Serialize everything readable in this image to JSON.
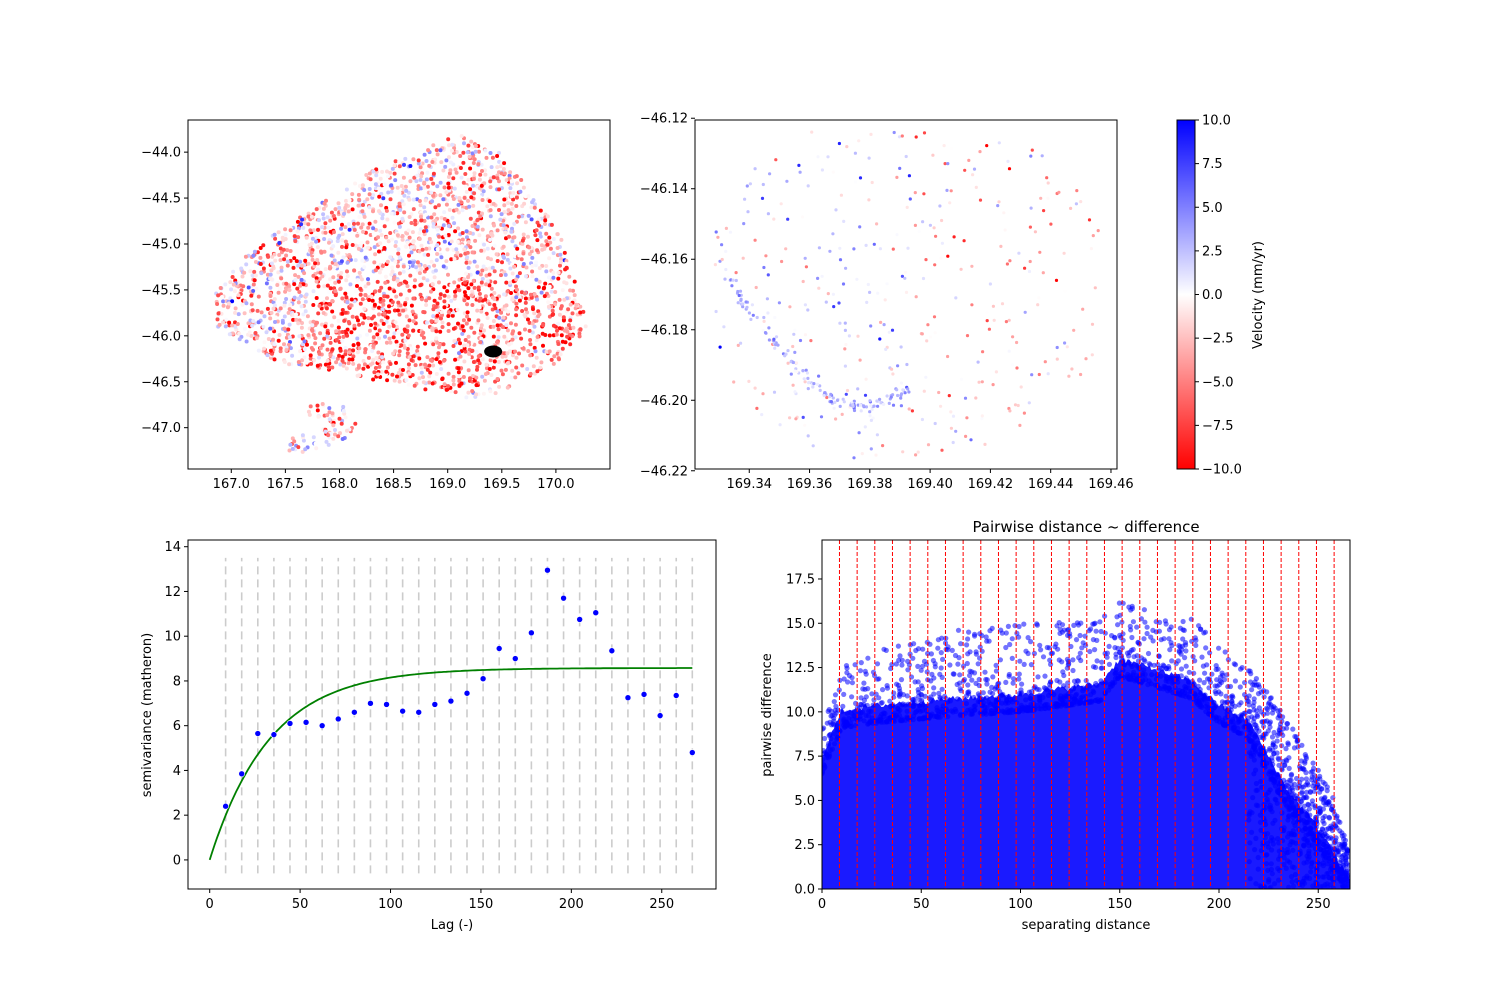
{
  "colors": {
    "positive": "#0000ff",
    "neutral": "#ffffff",
    "negative": "#ff0000",
    "highlight_cluster": "#000000",
    "fitted_model": "#008000",
    "bin_marker": "#cccccc",
    "pair_points": "#0000ff",
    "bin_edges": "#ff0000"
  },
  "chart_data": [
    {
      "id": "regional-map",
      "type": "scatter",
      "title": "",
      "xlabel": "",
      "ylabel": "",
      "xlim": [
        166.6,
        170.5
      ],
      "ylim": [
        -47.45,
        -43.65
      ],
      "xticks": [
        {
          "v": 167.0,
          "label": "167.0"
        },
        {
          "v": 167.5,
          "label": "167.5"
        },
        {
          "v": 168.0,
          "label": "168.0"
        },
        {
          "v": 168.5,
          "label": "168.5"
        },
        {
          "v": 169.0,
          "label": "169.0"
        },
        {
          "v": 169.5,
          "label": "169.5"
        },
        {
          "v": 170.0,
          "label": "170.0"
        }
      ],
      "yticks": [
        {
          "v": -44.0,
          "label": "−44.0"
        },
        {
          "v": -44.5,
          "label": "−44.5"
        },
        {
          "v": -45.0,
          "label": "−45.0"
        },
        {
          "v": -45.5,
          "label": "−45.5"
        },
        {
          "v": -46.0,
          "label": "−46.0"
        },
        {
          "v": -46.5,
          "label": "−46.5"
        },
        {
          "v": -47.0,
          "label": "−47.0"
        }
      ],
      "series": [
        {
          "description_values": "velocity-coloured PS points, main region",
          "region_polygon_lonlat": [
            [
              169.1,
              -43.8
            ],
            [
              169.55,
              -44.05
            ],
            [
              170.05,
              -44.9
            ],
            [
              170.3,
              -45.9
            ],
            [
              170.0,
              -46.3
            ],
            [
              169.6,
              -46.55
            ],
            [
              169.3,
              -46.7
            ],
            [
              168.85,
              -46.6
            ],
            [
              168.2,
              -46.45
            ],
            [
              167.45,
              -46.3
            ],
            [
              166.85,
              -45.9
            ],
            [
              166.85,
              -45.55
            ],
            [
              167.15,
              -45.1
            ],
            [
              167.7,
              -44.65
            ],
            [
              168.3,
              -44.2
            ],
            [
              168.7,
              -44.0
            ]
          ],
          "island_polygon_lonlat": [
            [
              167.7,
              -46.75
            ],
            [
              168.05,
              -46.72
            ],
            [
              168.2,
              -46.95
            ],
            [
              168.05,
              -47.15
            ],
            [
              167.55,
              -47.3
            ],
            [
              167.5,
              -47.12
            ],
            [
              167.75,
              -47.0
            ]
          ],
          "highlight_cluster": {
            "lon": 169.42,
            "lat": -46.17
          }
        }
      ]
    },
    {
      "id": "subset-map",
      "type": "scatter",
      "title": "",
      "xlabel": "",
      "ylabel": "",
      "xlim": [
        169.322,
        169.462
      ],
      "ylim": [
        -46.2195,
        -46.1205
      ],
      "xticks": [
        {
          "v": 169.34,
          "label": "169.34"
        },
        {
          "v": 169.36,
          "label": "169.36"
        },
        {
          "v": 169.38,
          "label": "169.38"
        },
        {
          "v": 169.4,
          "label": "169.40"
        },
        {
          "v": 169.42,
          "label": "169.42"
        },
        {
          "v": 169.44,
          "label": "169.44"
        },
        {
          "v": 169.46,
          "label": "169.46"
        }
      ],
      "yticks": [
        {
          "v": -46.12,
          "label": "−46.12"
        },
        {
          "v": -46.14,
          "label": "−46.14"
        },
        {
          "v": -46.16,
          "label": "−46.16"
        },
        {
          "v": -46.18,
          "label": "−46.18"
        },
        {
          "v": -46.2,
          "label": "−46.20"
        },
        {
          "v": -46.22,
          "label": "−46.22"
        }
      ],
      "arc_track": [
        [
          169.333,
          -46.165
        ],
        [
          169.338,
          -46.172
        ],
        [
          169.345,
          -46.18
        ],
        [
          169.352,
          -46.187
        ],
        [
          169.358,
          -46.193
        ],
        [
          169.364,
          -46.198
        ],
        [
          169.37,
          -46.201
        ],
        [
          169.376,
          -46.202
        ],
        [
          169.382,
          -46.201
        ],
        [
          169.388,
          -46.199
        ],
        [
          169.394,
          -46.196
        ]
      ],
      "extent_lonlat": {
        "x0": 169.328,
        "x1": 169.456,
        "y0": -46.2165,
        "y1": -46.123
      }
    },
    {
      "id": "velocity-colorbar",
      "type": "heatmap",
      "label": "Velocity (mm/yr)",
      "range": [
        -10.0,
        10.0
      ],
      "ticks": [
        {
          "v": 10.0,
          "label": "10.0"
        },
        {
          "v": 7.5,
          "label": "7.5"
        },
        {
          "v": 5.0,
          "label": "5.0"
        },
        {
          "v": 2.5,
          "label": "2.5"
        },
        {
          "v": 0.0,
          "label": "0.0"
        },
        {
          "v": -2.5,
          "label": "−2.5"
        },
        {
          "v": -5.0,
          "label": "−5.0"
        },
        {
          "v": -7.5,
          "label": "−7.5"
        },
        {
          "v": -10.0,
          "label": "−10.0"
        }
      ]
    },
    {
      "id": "semivariogram",
      "type": "scatter",
      "title": "",
      "xlabel": "Lag (-)",
      "ylabel": "semivariance (matheron)",
      "xlim": [
        -12,
        280
      ],
      "ylim": [
        -1.3,
        14.3
      ],
      "xticks": [
        {
          "v": 0,
          "label": "0"
        },
        {
          "v": 50,
          "label": "50"
        },
        {
          "v": 100,
          "label": "100"
        },
        {
          "v": 150,
          "label": "150"
        },
        {
          "v": 200,
          "label": "200"
        },
        {
          "v": 250,
          "label": "250"
        }
      ],
      "yticks": [
        {
          "v": 0,
          "label": "0"
        },
        {
          "v": 2,
          "label": "2"
        },
        {
          "v": 4,
          "label": "4"
        },
        {
          "v": 6,
          "label": "6"
        },
        {
          "v": 8,
          "label": "8"
        },
        {
          "v": 10,
          "label": "10"
        },
        {
          "v": 12,
          "label": "12"
        },
        {
          "v": 14,
          "label": "14"
        }
      ],
      "experimental": {
        "x": [
          8.8,
          17.7,
          26.6,
          35.5,
          44.4,
          53.3,
          62.2,
          71.1,
          80.0,
          88.9,
          97.8,
          106.7,
          115.6,
          124.5,
          133.4,
          142.3,
          151.2,
          160.1,
          169.0,
          177.9,
          186.8,
          195.7,
          204.6,
          213.5,
          222.4,
          231.3,
          240.2,
          249.1,
          258.0,
          266.9
        ],
        "y": [
          2.4,
          3.85,
          5.65,
          5.6,
          6.1,
          6.15,
          6.0,
          6.3,
          6.6,
          7.0,
          6.95,
          6.65,
          6.6,
          6.95,
          7.1,
          7.45,
          8.1,
          9.45,
          9.0,
          10.15,
          12.95,
          11.7,
          10.75,
          11.05,
          9.35,
          7.25,
          7.4,
          6.45,
          7.35,
          4.8
        ]
      },
      "bin_marker_range": [
        -0.6,
        13.5
      ],
      "model": {
        "type": "exponential",
        "sill": 8.58,
        "range": 100,
        "nugget": 0,
        "x_max": 266.9
      }
    },
    {
      "id": "pairwise",
      "type": "scatter",
      "title": "Pairwise distance ~ difference",
      "xlabel": "separating distance",
      "ylabel": "pairwise difference",
      "xlim": [
        0,
        266
      ],
      "ylim": [
        0,
        19.7
      ],
      "xticks": [
        {
          "v": 0,
          "label": "0"
        },
        {
          "v": 50,
          "label": "50"
        },
        {
          "v": 100,
          "label": "100"
        },
        {
          "v": 150,
          "label": "150"
        },
        {
          "v": 200,
          "label": "200"
        },
        {
          "v": 250,
          "label": "250"
        }
      ],
      "yticks": [
        {
          "v": 0,
          "label": "0.0"
        },
        {
          "v": 2.5,
          "label": "2.5"
        },
        {
          "v": 5,
          "label": "5.0"
        },
        {
          "v": 7.5,
          "label": "7.5"
        },
        {
          "v": 10,
          "label": "10.0"
        },
        {
          "v": 12.5,
          "label": "12.5"
        },
        {
          "v": 15,
          "label": "15.0"
        },
        {
          "v": 17.5,
          "label": "17.5"
        }
      ],
      "bin_edges": [
        8.8,
        17.7,
        26.6,
        35.5,
        44.4,
        53.3,
        62.2,
        71.1,
        80.0,
        88.9,
        97.8,
        106.7,
        115.6,
        124.5,
        133.4,
        142.3,
        151.2,
        160.1,
        169.0,
        177.9,
        186.8,
        195.7,
        204.6,
        213.5,
        222.4,
        231.3,
        240.2,
        249.1,
        258.0
      ],
      "envelope": {
        "x": [
          0,
          10,
          30,
          60,
          100,
          140,
          150,
          165,
          185,
          200,
          215,
          225,
          235,
          245,
          255,
          262,
          266
        ],
        "dense_top": [
          7.5,
          10.1,
          10.4,
          10.7,
          11.0,
          11.6,
          13.0,
          12.5,
          11.8,
          10.4,
          9.5,
          7.5,
          5.5,
          4.2,
          2.6,
          1.2,
          0.5
        ],
        "outlier_top": [
          9,
          12.5,
          13.5,
          14.5,
          15.0,
          15.3,
          16.2,
          15.8,
          15.4,
          14.0,
          12.5,
          11,
          9.5,
          7.5,
          6.0,
          3.5,
          2.0
        ]
      }
    }
  ]
}
